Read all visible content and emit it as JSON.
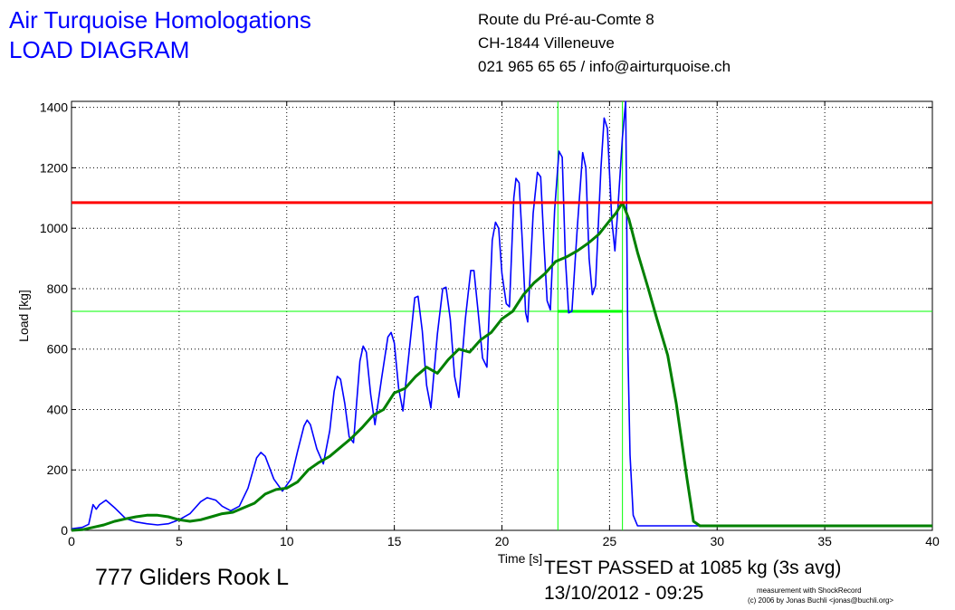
{
  "header": {
    "company": "Air Turquoise Homologations",
    "diagram_title": "LOAD DIAGRAM",
    "address_line1": "Route du Pré-au-Comte 8",
    "address_line2": "CH-1844 Villeneuve",
    "contact": "021 965 65 65 / info@airturquoise.ch"
  },
  "glider_name": "777 Gliders Rook L",
  "result": {
    "status": "TEST PASSED at 1085 kg (3s avg)",
    "datetime": "13/10/2012 - 09:25"
  },
  "credit": {
    "line1": "measurement with ShockRecord",
    "line2": "(c) 2006 by Jonas Buchli <jonas@buchli.org>"
  },
  "colors": {
    "raw_load": "#0000ff",
    "avg_load": "#008000",
    "threshold": "#ff0000",
    "marker": "#00ff00"
  },
  "chart_data": {
    "type": "line",
    "xlabel": "Time [s]",
    "ylabel": "Load [kg]",
    "xlim": [
      0,
      40
    ],
    "ylim": [
      0,
      1420
    ],
    "xticks": [
      0,
      5,
      10,
      15,
      20,
      25,
      30,
      35,
      40
    ],
    "yticks": [
      0,
      200,
      400,
      600,
      800,
      1000,
      1200,
      1400
    ],
    "grid": true,
    "threshold": 1085,
    "marker_load": 725,
    "marker_t_start": 22.6,
    "marker_t_end": 25.6,
    "series": [
      {
        "points": [
          [
            0,
            5
          ],
          [
            0.5,
            10
          ],
          [
            0.8,
            20
          ],
          [
            1.0,
            85
          ],
          [
            1.15,
            70
          ],
          [
            1.3,
            85
          ],
          [
            1.6,
            100
          ],
          [
            2.0,
            75
          ],
          [
            2.5,
            40
          ],
          [
            3.0,
            28
          ],
          [
            3.5,
            22
          ],
          [
            4.0,
            18
          ],
          [
            4.5,
            22
          ],
          [
            5.0,
            35
          ],
          [
            5.5,
            55
          ],
          [
            6.0,
            95
          ],
          [
            6.3,
            108
          ],
          [
            6.7,
            100
          ],
          [
            7.0,
            80
          ],
          [
            7.4,
            65
          ],
          [
            7.8,
            80
          ],
          [
            8.2,
            140
          ],
          [
            8.6,
            240
          ],
          [
            8.8,
            258
          ],
          [
            9.0,
            245
          ],
          [
            9.4,
            170
          ],
          [
            9.8,
            130
          ],
          [
            10.2,
            170
          ],
          [
            10.5,
            260
          ],
          [
            10.8,
            345
          ],
          [
            10.95,
            365
          ],
          [
            11.1,
            350
          ],
          [
            11.4,
            270
          ],
          [
            11.7,
            220
          ],
          [
            12.0,
            330
          ],
          [
            12.2,
            460
          ],
          [
            12.35,
            510
          ],
          [
            12.5,
            500
          ],
          [
            12.7,
            420
          ],
          [
            12.9,
            310
          ],
          [
            13.1,
            290
          ],
          [
            13.4,
            560
          ],
          [
            13.55,
            610
          ],
          [
            13.7,
            590
          ],
          [
            13.9,
            450
          ],
          [
            14.1,
            350
          ],
          [
            14.4,
            500
          ],
          [
            14.7,
            640
          ],
          [
            14.85,
            655
          ],
          [
            15.0,
            620
          ],
          [
            15.2,
            470
          ],
          [
            15.4,
            395
          ],
          [
            15.7,
            600
          ],
          [
            15.95,
            770
          ],
          [
            16.1,
            775
          ],
          [
            16.3,
            660
          ],
          [
            16.5,
            480
          ],
          [
            16.7,
            405
          ],
          [
            17.0,
            650
          ],
          [
            17.25,
            800
          ],
          [
            17.4,
            805
          ],
          [
            17.6,
            700
          ],
          [
            17.8,
            510
          ],
          [
            18.0,
            440
          ],
          [
            18.3,
            700
          ],
          [
            18.55,
            860
          ],
          [
            18.7,
            860
          ],
          [
            18.9,
            720
          ],
          [
            19.1,
            570
          ],
          [
            19.3,
            540
          ],
          [
            19.55,
            960
          ],
          [
            19.7,
            1020
          ],
          [
            19.85,
            1000
          ],
          [
            20.0,
            850
          ],
          [
            20.2,
            750
          ],
          [
            20.35,
            740
          ],
          [
            20.55,
            1100
          ],
          [
            20.65,
            1165
          ],
          [
            20.8,
            1150
          ],
          [
            20.95,
            950
          ],
          [
            21.1,
            720
          ],
          [
            21.2,
            690
          ],
          [
            21.45,
            1050
          ],
          [
            21.65,
            1185
          ],
          [
            21.8,
            1170
          ],
          [
            21.95,
            950
          ],
          [
            22.1,
            760
          ],
          [
            22.25,
            730
          ],
          [
            22.45,
            1060
          ],
          [
            22.65,
            1255
          ],
          [
            22.8,
            1235
          ],
          [
            22.95,
            900
          ],
          [
            23.1,
            720
          ],
          [
            23.25,
            725
          ],
          [
            23.5,
            1000
          ],
          [
            23.75,
            1250
          ],
          [
            23.9,
            1200
          ],
          [
            24.05,
            900
          ],
          [
            24.2,
            780
          ],
          [
            24.35,
            810
          ],
          [
            24.6,
            1200
          ],
          [
            24.75,
            1365
          ],
          [
            24.9,
            1330
          ],
          [
            25.1,
            1030
          ],
          [
            25.25,
            925
          ],
          [
            25.4,
            1080
          ],
          [
            25.6,
            1300
          ],
          [
            25.75,
            1430
          ],
          [
            25.85,
            600
          ],
          [
            25.95,
            250
          ],
          [
            26.1,
            50
          ],
          [
            26.3,
            15
          ],
          [
            30,
            15
          ],
          [
            35,
            15
          ],
          [
            40,
            15
          ]
        ]
      },
      {
        "points": [
          [
            0,
            0
          ],
          [
            0.5,
            2
          ],
          [
            1.0,
            10
          ],
          [
            1.5,
            18
          ],
          [
            2.0,
            30
          ],
          [
            2.5,
            38
          ],
          [
            3.0,
            45
          ],
          [
            3.5,
            50
          ],
          [
            4.0,
            50
          ],
          [
            4.5,
            45
          ],
          [
            5.0,
            35
          ],
          [
            5.5,
            30
          ],
          [
            6.0,
            35
          ],
          [
            6.5,
            45
          ],
          [
            7.0,
            55
          ],
          [
            7.5,
            60
          ],
          [
            8.0,
            75
          ],
          [
            8.5,
            90
          ],
          [
            9.0,
            120
          ],
          [
            9.5,
            135
          ],
          [
            10.0,
            140
          ],
          [
            10.5,
            160
          ],
          [
            11.0,
            200
          ],
          [
            11.5,
            225
          ],
          [
            12.0,
            245
          ],
          [
            12.5,
            275
          ],
          [
            13.0,
            305
          ],
          [
            13.5,
            340
          ],
          [
            14.0,
            380
          ],
          [
            14.5,
            400
          ],
          [
            15.0,
            455
          ],
          [
            15.5,
            470
          ],
          [
            16.0,
            510
          ],
          [
            16.5,
            540
          ],
          [
            17.0,
            520
          ],
          [
            17.5,
            565
          ],
          [
            18.0,
            600
          ],
          [
            18.5,
            590
          ],
          [
            19.0,
            630
          ],
          [
            19.5,
            655
          ],
          [
            20.0,
            700
          ],
          [
            20.5,
            725
          ],
          [
            21.0,
            780
          ],
          [
            21.5,
            820
          ],
          [
            22.0,
            850
          ],
          [
            22.5,
            890
          ],
          [
            23.0,
            905
          ],
          [
            23.5,
            925
          ],
          [
            24.0,
            950
          ],
          [
            24.5,
            980
          ],
          [
            25.0,
            1025
          ],
          [
            25.3,
            1050
          ],
          [
            25.6,
            1085
          ],
          [
            25.9,
            1030
          ],
          [
            26.3,
            920
          ],
          [
            26.8,
            800
          ],
          [
            27.2,
            700
          ],
          [
            27.7,
            580
          ],
          [
            28.1,
            420
          ],
          [
            28.6,
            170
          ],
          [
            28.9,
            30
          ],
          [
            29.2,
            15
          ],
          [
            35,
            15
          ],
          [
            40,
            15
          ]
        ]
      }
    ]
  }
}
